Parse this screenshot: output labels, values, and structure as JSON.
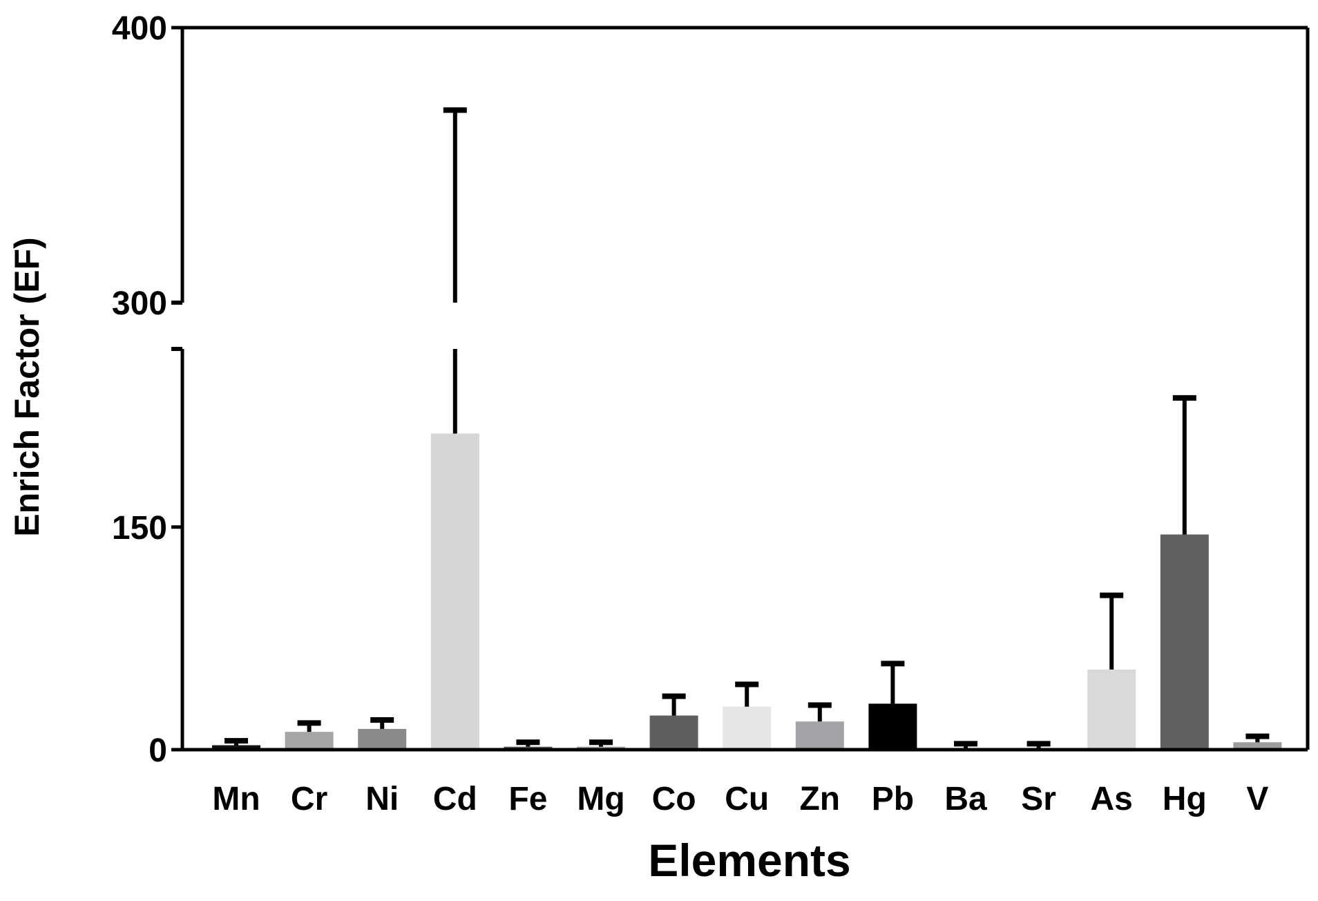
{
  "chart_data": {
    "type": "bar",
    "xlabel": "Elements",
    "ylabel": "Enrich Factor (EF)",
    "yaxis_break": {
      "segments": [
        {
          "range": [
            0,
            270
          ]
        },
        {
          "range": [
            300,
            400
          ]
        }
      ]
    },
    "ylim": [
      0,
      400
    ],
    "yticks": [
      {
        "value": 0,
        "label": "0"
      },
      {
        "value": 150,
        "label": "150"
      },
      {
        "value": 300,
        "label": "300"
      },
      {
        "value": 400,
        "label": "400"
      }
    ],
    "grid": false,
    "legend": "none",
    "categories": [
      "Mn",
      "Cr",
      "Ni",
      "Cd",
      "Fe",
      "Mg",
      "Co",
      "Cu",
      "Zn",
      "Pb",
      "Ba",
      "Sr",
      "As",
      "Hg",
      "V"
    ],
    "values": [
      3,
      12,
      14,
      213,
      2,
      2,
      23,
      29,
      19,
      31,
      1,
      1,
      54,
      145,
      5
    ],
    "error_upper": [
      6,
      18,
      20,
      370,
      5,
      5,
      36,
      44,
      30,
      58,
      4,
      4,
      104,
      237,
      9
    ],
    "colors": [
      "#111111",
      "#a5a5a8",
      "#8a8a8a",
      "#d6d6d6",
      "#555555",
      "#a0a0a0",
      "#5f5f5f",
      "#e6e6e6",
      "#a3a3a7",
      "#000000",
      "#b8b8b8",
      "#9a9a9a",
      "#d9d9d9",
      "#606060",
      "#9c9c9c"
    ]
  }
}
